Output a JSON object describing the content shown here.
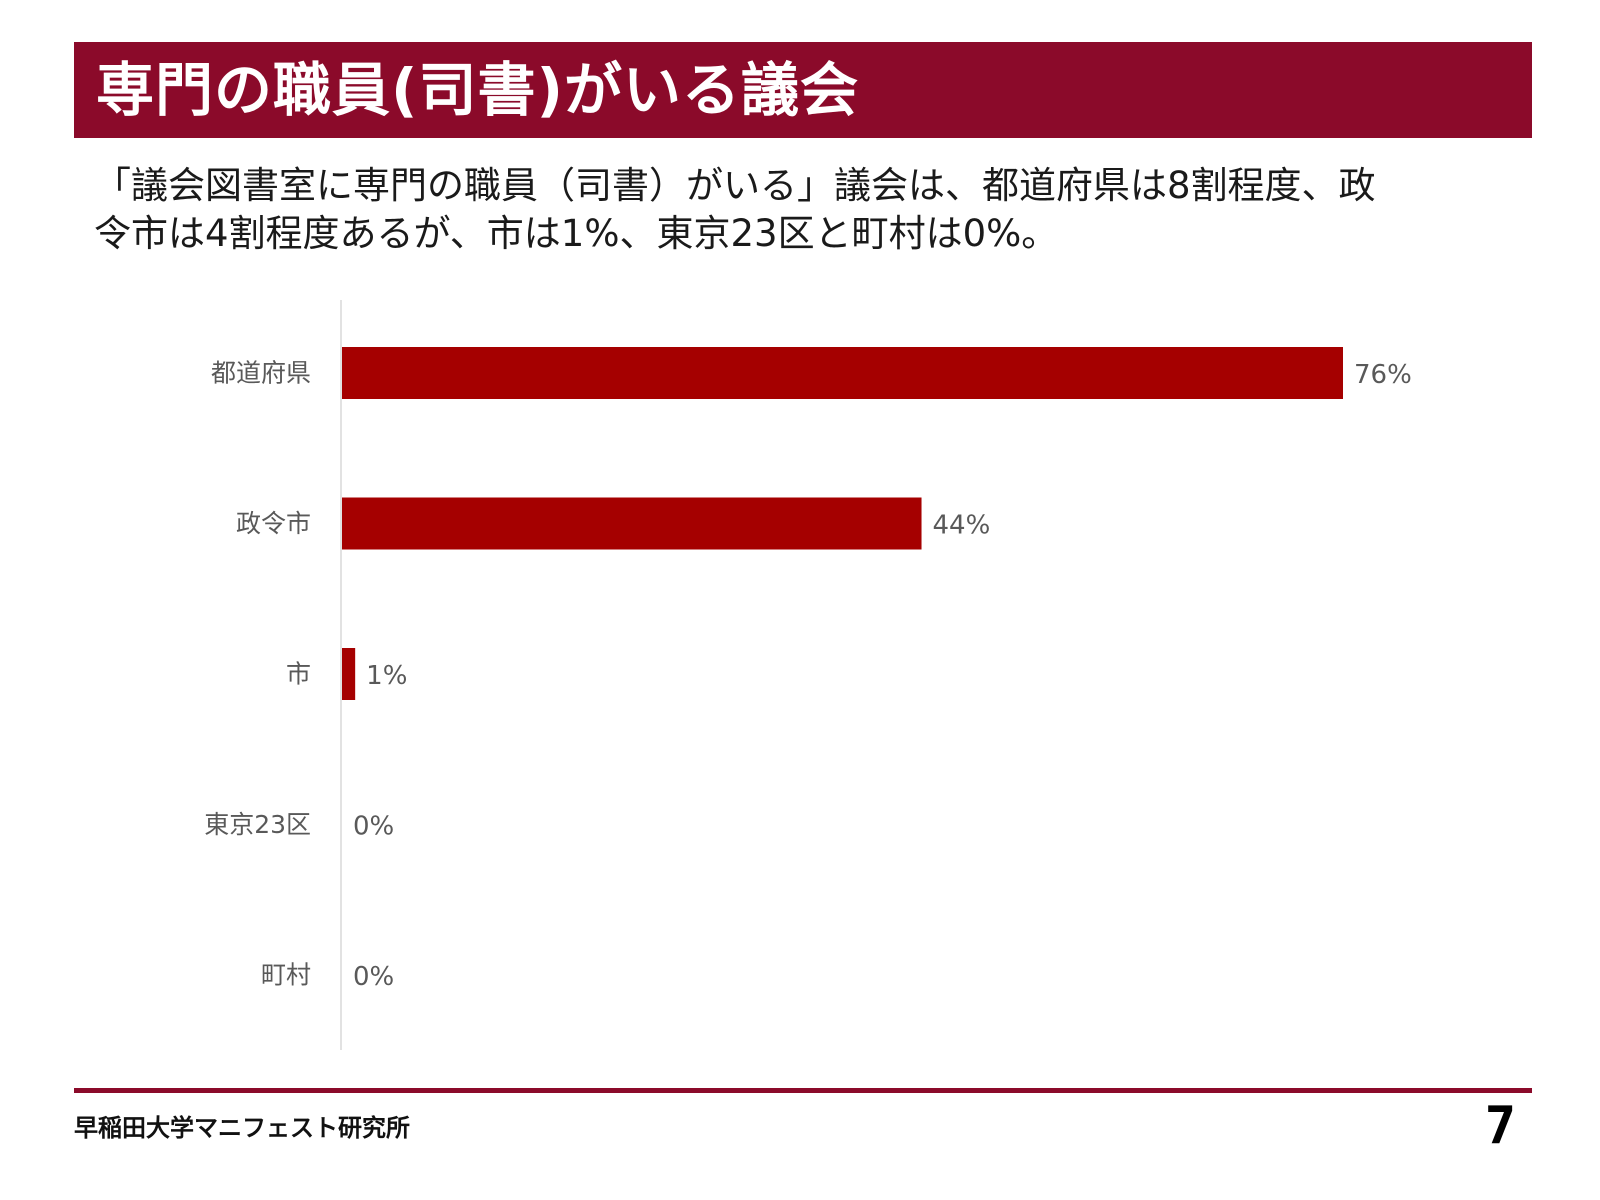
{
  "header": {
    "title": "専門の職員(司書)がいる議会"
  },
  "description": {
    "line1": "「議会図書室に専門の職員（司書）がいる」議会は、都道府県は8割程度、政",
    "line2": "令市は4割程度あるが、市は1%、東京23区と町村は0%。"
  },
  "chart_data": {
    "type": "bar",
    "orientation": "horizontal",
    "categories": [
      "都道府県",
      "政令市",
      "市",
      "東京23区",
      "町村"
    ],
    "values": [
      76,
      44,
      1,
      0,
      0
    ],
    "value_labels": [
      "76%",
      "44%",
      "1%",
      "0%",
      "0%"
    ],
    "xlim": [
      0,
      100
    ],
    "unit": "%",
    "grid": false,
    "bar_color": "#a50000",
    "label_color": "#595959",
    "axis_color": "#d9d9d9"
  },
  "footer": {
    "organization": "早稲田大学マニフェスト研究所",
    "page_number": "7"
  },
  "colors": {
    "accent": "#8b0a2a"
  }
}
